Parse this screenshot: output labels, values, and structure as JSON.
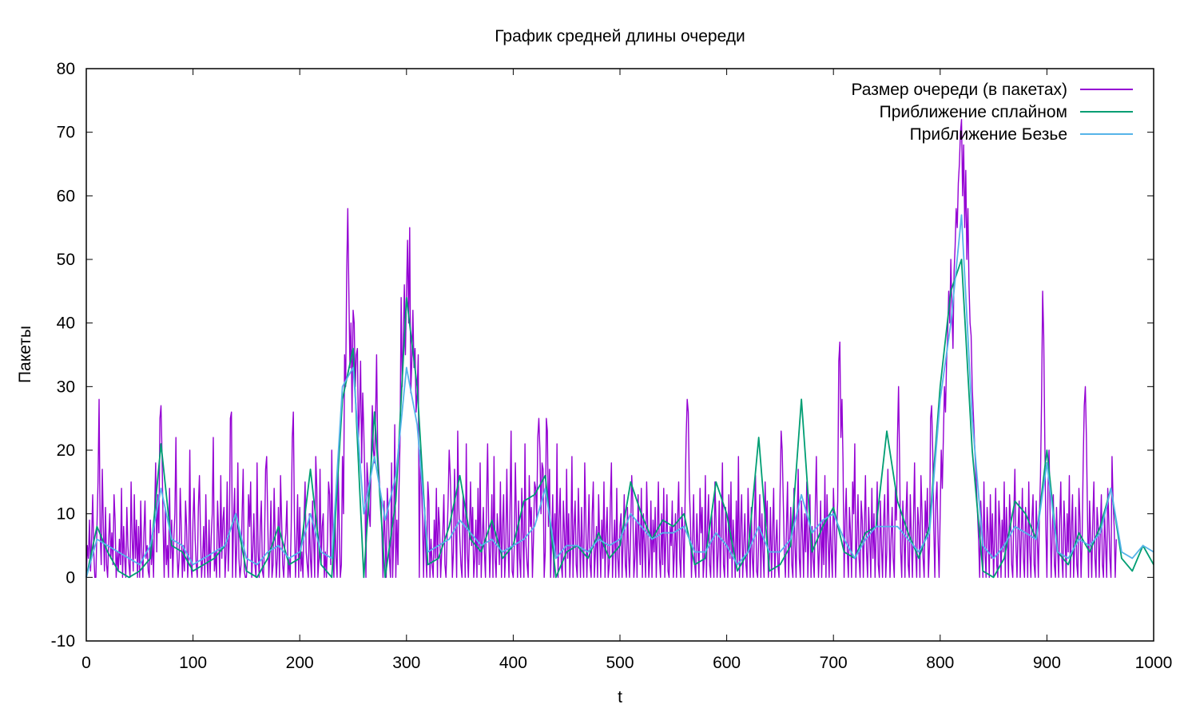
{
  "chart_data": {
    "type": "line",
    "title": "График средней длины очереди",
    "xlabel": "t",
    "ylabel": "Пакеты",
    "xlim": [
      0,
      1000
    ],
    "ylim": [
      -10,
      80
    ],
    "xticks": [
      0,
      100,
      200,
      300,
      400,
      500,
      600,
      700,
      800,
      900,
      1000
    ],
    "yticks": [
      -10,
      0,
      10,
      20,
      30,
      40,
      50,
      60,
      70,
      80
    ],
    "legend_position": "top-right",
    "grid": false,
    "series": [
      {
        "name": "Размер очереди (в пакетах)",
        "color": "#9400d3",
        "x_start": 0,
        "x_step": 1,
        "values": [
          0,
          5,
          3,
          9,
          1,
          6,
          13,
          4,
          0,
          0,
          8,
          15,
          28,
          7,
          2,
          17,
          8,
          1,
          11,
          2,
          0,
          6,
          10,
          3,
          7,
          2,
          13,
          9,
          0,
          4,
          1,
          6,
          2,
          14,
          0,
          8,
          3,
          0,
          11,
          5,
          2,
          0,
          15,
          6,
          1,
          13,
          3,
          9,
          0,
          8,
          0,
          12,
          4,
          0,
          7,
          12,
          3,
          5,
          1,
          0,
          9,
          2,
          6,
          0,
          10,
          18,
          4,
          13,
          7,
          25,
          27,
          19,
          8,
          0,
          11,
          2,
          5,
          0,
          14,
          3,
          9,
          0,
          6,
          10,
          22,
          4,
          0,
          3,
          14,
          8,
          0,
          5,
          1,
          12,
          8,
          0,
          4,
          20,
          2,
          0,
          9,
          14,
          6,
          2,
          0,
          11,
          16,
          7,
          0,
          3,
          8,
          0,
          13,
          3,
          0,
          9,
          0,
          6,
          10,
          22,
          1,
          4,
          0,
          12,
          7,
          0,
          16,
          3,
          9,
          11,
          0,
          4,
          15,
          1,
          6,
          25,
          26,
          0,
          9,
          14,
          0,
          5,
          18,
          3,
          0,
          2,
          10,
          17,
          1,
          0,
          0,
          3,
          13,
          8,
          15,
          0,
          4,
          10,
          2,
          0,
          18,
          4,
          0,
          8,
          12,
          1,
          0,
          6,
          17,
          19,
          9,
          0,
          4,
          12,
          0,
          2,
          14,
          6,
          0,
          3,
          11,
          0,
          16,
          9,
          2,
          0,
          5,
          7,
          12,
          0,
          3,
          0,
          8,
          22,
          26,
          9,
          0,
          5,
          13,
          0,
          11,
          1,
          4,
          0,
          9,
          15,
          4,
          2,
          0,
          10,
          3,
          0,
          12,
          6,
          0,
          19,
          14,
          0,
          3,
          17,
          2,
          8,
          10,
          0,
          4,
          0,
          6,
          15,
          13,
          2,
          20,
          4,
          0,
          10,
          3,
          0,
          17,
          8,
          0,
          2,
          19,
          10,
          35,
          30,
          48,
          58,
          45,
          33,
          40,
          26,
          42,
          40,
          30,
          35,
          36,
          22,
          26,
          34,
          18,
          29,
          23,
          15,
          0,
          18,
          15,
          10,
          8,
          20,
          27,
          20,
          18,
          25,
          35,
          20,
          17,
          14,
          13,
          7,
          0,
          12,
          6,
          0,
          14,
          10,
          3,
          0,
          18,
          0,
          6,
          24,
          0,
          9,
          2,
          14,
          22,
          44,
          30,
          37,
          46,
          35,
          45,
          53,
          40,
          55,
          29,
          34,
          42,
          33,
          36,
          26,
          29,
          35,
          0,
          20,
          15,
          9,
          0,
          11,
          4,
          0,
          15,
          12,
          0,
          6,
          2,
          0,
          9,
          3,
          14,
          0,
          11,
          8,
          0,
          4,
          7,
          13,
          2,
          0,
          6,
          12,
          20,
          16,
          10,
          0,
          4,
          17,
          8,
          0,
          23,
          11,
          6,
          2,
          0,
          13,
          9,
          0,
          21,
          4,
          0,
          7,
          15,
          5,
          11,
          0,
          3,
          9,
          0,
          14,
          2,
          18,
          0,
          6,
          11,
          4,
          0,
          12,
          21,
          8,
          0,
          5,
          13,
          0,
          19,
          3,
          0,
          10,
          7,
          2,
          15,
          0,
          8,
          13,
          0,
          4,
          17,
          6,
          0,
          11,
          23,
          1,
          0,
          5,
          18,
          9,
          0,
          12,
          3,
          0,
          14,
          7,
          0,
          21,
          5,
          2,
          0,
          16,
          8,
          11,
          0,
          6,
          15,
          14,
          9,
          22,
          25,
          20,
          10,
          18,
          17,
          0,
          4,
          25,
          23,
          8,
          17,
          0,
          6,
          13,
          0,
          10,
          3,
          21,
          0,
          9,
          14,
          2,
          0,
          12,
          7,
          0,
          17,
          3,
          10,
          0,
          5,
          19,
          0,
          8,
          12,
          2,
          0,
          14,
          7,
          0,
          11,
          4,
          0,
          18,
          9,
          0,
          6,
          13,
          2,
          0,
          10,
          15,
          0,
          4,
          8,
          0,
          13,
          6,
          0,
          9,
          3,
          15,
          0,
          7,
          11,
          0,
          2,
          12,
          18,
          0,
          5,
          9,
          0,
          14,
          3,
          0,
          8,
          10,
          0,
          6,
          13,
          2,
          0,
          11,
          4,
          0,
          7,
          16,
          12,
          0,
          3,
          9,
          0,
          13,
          6,
          2,
          14,
          0,
          10,
          5,
          0,
          15,
          8,
          0,
          3,
          12,
          0,
          9,
          4,
          11,
          0,
          7,
          15,
          3,
          0,
          10,
          2,
          14,
          0,
          6,
          13,
          1,
          0,
          8,
          5,
          12,
          0,
          4,
          10,
          0,
          9,
          15,
          3,
          0,
          11,
          7,
          0,
          12,
          22,
          28,
          26,
          14,
          9,
          0,
          6,
          13,
          2,
          0,
          10,
          5,
          0,
          14,
          7,
          11,
          0,
          3,
          16,
          0,
          8,
          13,
          2,
          0,
          10,
          5,
          0,
          15,
          9,
          0,
          4,
          12,
          0,
          7,
          18,
          2,
          0,
          11,
          6,
          0,
          13,
          3,
          15,
          0,
          9,
          5,
          0,
          12,
          2,
          19,
          0,
          8,
          13,
          0,
          5,
          10,
          2,
          0,
          14,
          7,
          0,
          11,
          3,
          0,
          9,
          16,
          1,
          0,
          6,
          13,
          0,
          10,
          4,
          0,
          15,
          8,
          12,
          0,
          3,
          11,
          0,
          7,
          14,
          0,
          5,
          9,
          2,
          0,
          13,
          23,
          20,
          12,
          4,
          0,
          8,
          15,
          0,
          6,
          11,
          2,
          0,
          14,
          5,
          0,
          9,
          17,
          3,
          0,
          12,
          7,
          0,
          10,
          4,
          15,
          0,
          6,
          13,
          0,
          8,
          3,
          0,
          11,
          19,
          7,
          0,
          5,
          12,
          0,
          9,
          2,
          16,
          0,
          13,
          6,
          0,
          10,
          4,
          0,
          14,
          8,
          0,
          7,
          12,
          34,
          37,
          22,
          28,
          18,
          0,
          9,
          14,
          4,
          0,
          11,
          7,
          0,
          15,
          10,
          21,
          0,
          6,
          13,
          3,
          0,
          12,
          9,
          0,
          8,
          16,
          4,
          0,
          11,
          6,
          0,
          14,
          3,
          10,
          0,
          7,
          15,
          2,
          0,
          12,
          5,
          0,
          9,
          13,
          0,
          4,
          17,
          8,
          0,
          6,
          11,
          3,
          0,
          14,
          9,
          22,
          30,
          18,
          4,
          0,
          12,
          7,
          0,
          10,
          15,
          2,
          0,
          13,
          6,
          0,
          9,
          18,
          4,
          0,
          11,
          8,
          0,
          16,
          10,
          3,
          0,
          12,
          7,
          14,
          0,
          5,
          25,
          27,
          20,
          8,
          0,
          12,
          15,
          6,
          0,
          10,
          20,
          14,
          22,
          30,
          26,
          34,
          38,
          45,
          40,
          50,
          42,
          36,
          48,
          52,
          58,
          55,
          62,
          65,
          70,
          72,
          60,
          68,
          55,
          64,
          50,
          58,
          46,
          40,
          38,
          30,
          26,
          22,
          18,
          14,
          10,
          6,
          0,
          12,
          8,
          0,
          15,
          4,
          0,
          11,
          7,
          0,
          13,
          3,
          10,
          0,
          6,
          14,
          2,
          0,
          12,
          8,
          0,
          9,
          4,
          15,
          0,
          11,
          6,
          0,
          13,
          9,
          2,
          0,
          10,
          17,
          5,
          0,
          8,
          12,
          0,
          6,
          14,
          3,
          0,
          11,
          7,
          0,
          15,
          4,
          0,
          9,
          13,
          2,
          0,
          12,
          6,
          0,
          10,
          16,
          28,
          45,
          38,
          22,
          8,
          0,
          14,
          20,
          10,
          0,
          7,
          13,
          2,
          0,
          11,
          5,
          0,
          9,
          15,
          3,
          0,
          12,
          7,
          0,
          10,
          4,
          16,
          0,
          8,
          13,
          0,
          5,
          11,
          2,
          0,
          14,
          9,
          0,
          6,
          18,
          27,
          30,
          22,
          10,
          0,
          12,
          6,
          0,
          9,
          15,
          3,
          0,
          11,
          8,
          0,
          7,
          13,
          2,
          0,
          10,
          5,
          0,
          14,
          9,
          3,
          0,
          19,
          12,
          8,
          0,
          6
        ]
      },
      {
        "name": "Приближение сплайном",
        "color": "#009e73",
        "x": [
          0,
          10,
          20,
          30,
          40,
          50,
          60,
          70,
          80,
          90,
          100,
          110,
          120,
          130,
          140,
          150,
          160,
          170,
          180,
          190,
          200,
          210,
          220,
          230,
          240,
          250,
          260,
          270,
          280,
          290,
          300,
          310,
          320,
          330,
          340,
          350,
          360,
          370,
          380,
          390,
          400,
          410,
          420,
          430,
          440,
          450,
          460,
          470,
          480,
          490,
          500,
          510,
          520,
          530,
          540,
          550,
          560,
          570,
          580,
          590,
          600,
          610,
          620,
          630,
          640,
          650,
          660,
          670,
          680,
          690,
          700,
          710,
          720,
          730,
          740,
          750,
          760,
          770,
          780,
          790,
          800,
          810,
          820,
          830,
          840,
          850,
          860,
          870,
          880,
          890,
          900,
          910,
          920,
          930,
          940,
          950,
          960,
          970,
          980,
          990,
          1000
        ],
        "values": [
          0,
          8,
          4,
          1,
          0,
          1,
          3,
          21,
          5,
          4,
          1,
          2,
          3,
          5,
          10,
          1,
          0,
          3,
          8,
          2,
          3,
          17,
          2,
          0,
          28,
          36,
          0,
          26,
          0,
          12,
          44,
          30,
          2,
          3,
          8,
          16,
          6,
          4,
          9,
          3,
          5,
          12,
          13,
          16,
          0,
          4,
          5,
          3,
          7,
          3,
          5,
          15,
          10,
          6,
          9,
          8,
          10,
          2,
          3,
          15,
          10,
          1,
          4,
          22,
          1,
          2,
          5,
          28,
          4,
          8,
          11,
          4,
          3,
          7,
          8,
          23,
          12,
          7,
          3,
          8,
          30,
          45,
          50,
          20,
          1,
          0,
          3,
          12,
          10,
          6,
          20,
          4,
          2,
          7,
          4,
          8,
          14,
          3,
          1,
          5,
          2
        ]
      },
      {
        "name": "Приближение Безье",
        "color": "#56b4e9",
        "x": [
          0,
          10,
          20,
          30,
          40,
          50,
          60,
          70,
          80,
          90,
          100,
          110,
          120,
          130,
          140,
          150,
          160,
          170,
          180,
          190,
          200,
          210,
          220,
          230,
          240,
          250,
          260,
          270,
          280,
          290,
          300,
          310,
          320,
          330,
          340,
          350,
          360,
          370,
          380,
          390,
          400,
          410,
          420,
          430,
          440,
          450,
          460,
          470,
          480,
          490,
          500,
          510,
          520,
          530,
          540,
          550,
          560,
          570,
          580,
          590,
          600,
          610,
          620,
          630,
          640,
          650,
          660,
          670,
          680,
          690,
          700,
          710,
          720,
          730,
          740,
          750,
          760,
          770,
          780,
          790,
          800,
          810,
          820,
          830,
          840,
          850,
          860,
          870,
          880,
          890,
          900,
          910,
          920,
          930,
          940,
          950,
          960,
          970,
          980,
          990,
          1000
        ],
        "values": [
          0,
          6,
          5,
          4,
          3,
          2,
          5,
          14,
          6,
          5,
          2,
          3,
          4,
          5,
          10,
          3,
          2,
          4,
          5,
          3,
          4,
          10,
          4,
          3,
          30,
          33,
          10,
          19,
          9,
          16,
          33,
          24,
          4,
          5,
          6,
          9,
          7,
          5,
          6,
          4,
          5,
          6,
          8,
          14,
          3,
          5,
          5,
          4,
          6,
          5,
          6,
          10,
          8,
          6,
          7,
          7,
          8,
          4,
          4,
          7,
          5,
          2,
          4,
          8,
          4,
          4,
          6,
          13,
          7,
          9,
          10,
          6,
          3,
          6,
          8,
          8,
          8,
          6,
          4,
          7,
          28,
          40,
          57,
          25,
          5,
          3,
          5,
          8,
          7,
          6,
          18,
          4,
          3,
          6,
          5,
          7,
          14,
          4,
          3,
          5,
          4
        ]
      }
    ]
  }
}
